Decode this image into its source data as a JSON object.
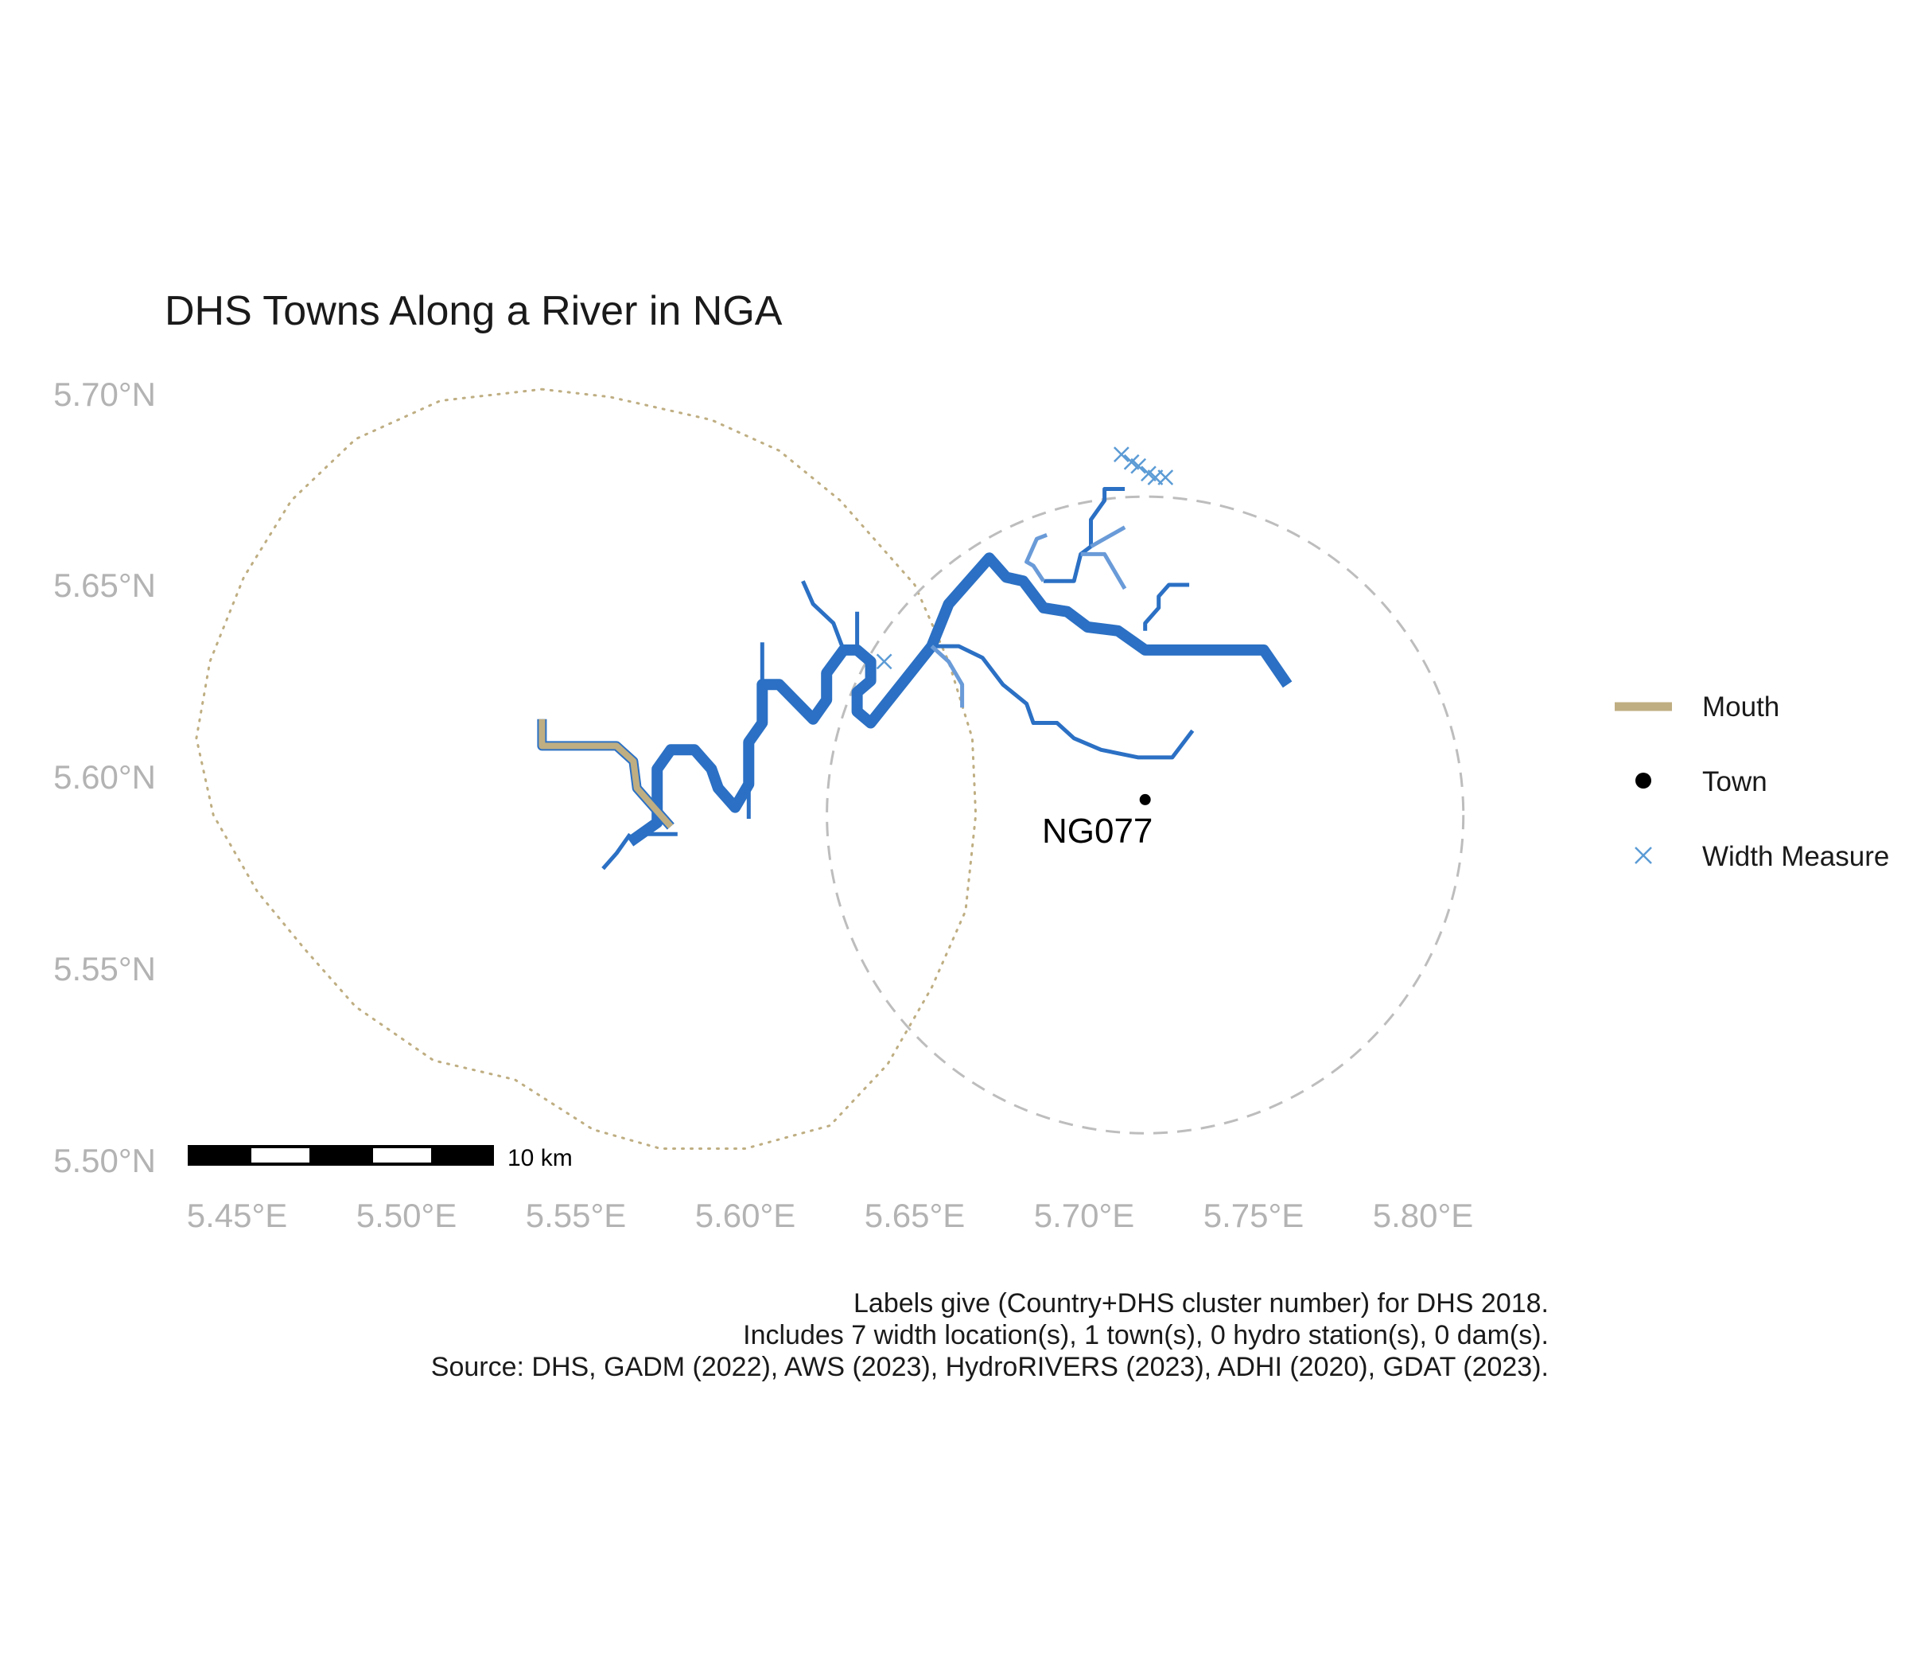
{
  "title": "DHS Towns Along a River in NGA",
  "axes": {
    "x_ticks": [
      "5.45°E",
      "5.50°E",
      "5.55°E",
      "5.60°E",
      "5.65°E",
      "5.70°E",
      "5.75°E",
      "5.80°E"
    ],
    "y_ticks": [
      "5.70°N",
      "5.65°N",
      "5.60°N",
      "5.55°N",
      "5.50°N"
    ]
  },
  "legend": {
    "items": [
      {
        "label": "Mouth",
        "kind": "line",
        "color": "#bfae82"
      },
      {
        "label": "Town",
        "kind": "point",
        "color": "#000000"
      },
      {
        "label": "Width Measure",
        "kind": "cross",
        "color": "#5b9bd5"
      }
    ]
  },
  "scale_bar": {
    "label": "10 km"
  },
  "town": {
    "label": "NG077",
    "lon": 5.718,
    "lat": 5.594
  },
  "caption": {
    "line1": "Labels give (Country+DHS cluster number) for DHS 2018.",
    "line2": "Includes 7 width location(s), 1 town(s), 0 hydro station(s), 0 dam(s).",
    "line3": "Source: DHS, GADM (2022), AWS (2023), HydroRIVERS (2023), ADHI (2020), GDAT (2023)."
  },
  "colors": {
    "river": "#2b70c4",
    "tributary": "#6a9bd8",
    "mouth": "#bfae82",
    "town_buffer": "#bdbdbd",
    "mouth_buffer": "#bfae82",
    "axis_text": "#b3b3b3"
  },
  "chart_data": {
    "type": "map",
    "xlim": [
      5.43,
      5.81
    ],
    "ylim": [
      5.5,
      5.705
    ],
    "grid": false,
    "legend_position": "right",
    "width_measures": [
      {
        "lon": 5.711,
        "lat": 5.684
      },
      {
        "lon": 5.714,
        "lat": 5.682
      },
      {
        "lon": 5.716,
        "lat": 5.681
      },
      {
        "lon": 5.719,
        "lat": 5.679
      },
      {
        "lon": 5.721,
        "lat": 5.678
      },
      {
        "lon": 5.724,
        "lat": 5.678
      },
      {
        "lon": 5.641,
        "lat": 5.63
      }
    ],
    "rivers": [
      {
        "role": "main",
        "width": 5,
        "coords": [
          [
            5.566,
            5.583
          ],
          [
            5.574,
            5.588
          ],
          [
            5.574,
            5.602
          ],
          [
            5.578,
            5.607
          ],
          [
            5.585,
            5.607
          ],
          [
            5.59,
            5.602
          ],
          [
            5.592,
            5.597
          ],
          [
            5.597,
            5.592
          ],
          [
            5.601,
            5.598
          ],
          [
            5.601,
            5.609
          ],
          [
            5.605,
            5.614
          ],
          [
            5.605,
            5.624
          ],
          [
            5.61,
            5.624
          ],
          [
            5.62,
            5.615
          ],
          [
            5.624,
            5.62
          ],
          [
            5.624,
            5.627
          ],
          [
            5.629,
            5.633
          ],
          [
            5.633,
            5.633
          ],
          [
            5.637,
            5.63
          ],
          [
            5.637,
            5.625
          ],
          [
            5.633,
            5.622
          ],
          [
            5.633,
            5.617
          ],
          [
            5.637,
            5.614
          ],
          [
            5.646,
            5.624
          ],
          [
            5.655,
            5.634
          ],
          [
            5.66,
            5.645
          ],
          [
            5.672,
            5.657
          ],
          [
            5.677,
            5.652
          ],
          [
            5.682,
            5.651
          ],
          [
            5.688,
            5.644
          ],
          [
            5.695,
            5.643
          ],
          [
            5.701,
            5.639
          ],
          [
            5.71,
            5.638
          ],
          [
            5.718,
            5.633
          ],
          [
            5.753,
            5.633
          ],
          [
            5.76,
            5.624
          ]
        ]
      },
      {
        "role": "main",
        "width": 3,
        "coords": [
          [
            5.566,
            5.585
          ],
          [
            5.562,
            5.58
          ],
          [
            5.558,
            5.576
          ]
        ]
      },
      {
        "role": "main",
        "width": 3,
        "coords": [
          [
            5.568,
            5.585
          ],
          [
            5.58,
            5.585
          ]
        ]
      },
      {
        "role": "branch",
        "width": 3,
        "coords": [
          [
            5.605,
            5.624
          ],
          [
            5.605,
            5.635
          ]
        ]
      },
      {
        "role": "branch",
        "width": 3,
        "coords": [
          [
            5.601,
            5.598
          ],
          [
            5.601,
            5.589
          ]
        ]
      },
      {
        "role": "branch",
        "width": 3,
        "coords": [
          [
            5.629,
            5.633
          ],
          [
            5.626,
            5.64
          ],
          [
            5.62,
            5.645
          ],
          [
            5.617,
            5.651
          ]
        ]
      },
      {
        "role": "branch",
        "width": 3,
        "coords": [
          [
            5.633,
            5.633
          ],
          [
            5.633,
            5.643
          ]
        ]
      },
      {
        "role": "branch",
        "width": 3,
        "coords": [
          [
            5.655,
            5.634
          ],
          [
            5.663,
            5.634
          ],
          [
            5.67,
            5.631
          ],
          [
            5.676,
            5.624
          ],
          [
            5.683,
            5.619
          ],
          [
            5.685,
            5.614
          ],
          [
            5.692,
            5.614
          ],
          [
            5.697,
            5.61
          ],
          [
            5.705,
            5.607
          ],
          [
            5.716,
            5.605
          ],
          [
            5.726,
            5.605
          ],
          [
            5.732,
            5.612
          ]
        ]
      },
      {
        "role": "tributary",
        "width": 3,
        "coords": [
          [
            5.655,
            5.634
          ],
          [
            5.66,
            5.63
          ],
          [
            5.664,
            5.624
          ],
          [
            5.664,
            5.618
          ]
        ]
      },
      {
        "role": "branch",
        "width": 3,
        "coords": [
          [
            5.688,
            5.651
          ],
          [
            5.697,
            5.651
          ],
          [
            5.699,
            5.658
          ],
          [
            5.702,
            5.66
          ],
          [
            5.702,
            5.667
          ],
          [
            5.706,
            5.672
          ],
          [
            5.706,
            5.675
          ],
          [
            5.712,
            5.675
          ]
        ]
      },
      {
        "role": "tributary",
        "width": 3,
        "coords": [
          [
            5.699,
            5.658
          ],
          [
            5.706,
            5.658
          ],
          [
            5.712,
            5.649
          ]
        ]
      },
      {
        "role": "tributary",
        "width": 3,
        "coords": [
          [
            5.702,
            5.66
          ],
          [
            5.712,
            5.665
          ]
        ]
      },
      {
        "role": "tributary",
        "width": 3,
        "coords": [
          [
            5.688,
            5.651
          ],
          [
            5.685,
            5.655
          ],
          [
            5.683,
            5.656
          ],
          [
            5.686,
            5.662
          ],
          [
            5.689,
            5.663
          ]
        ]
      },
      {
        "role": "branch",
        "width": 3,
        "coords": [
          [
            5.718,
            5.638
          ],
          [
            5.718,
            5.64
          ],
          [
            5.722,
            5.644
          ],
          [
            5.722,
            5.647
          ],
          [
            5.725,
            5.65
          ],
          [
            5.731,
            5.65
          ]
        ]
      }
    ],
    "mouth_segment": [
      [
        5.54,
        5.615
      ],
      [
        5.54,
        5.608
      ],
      [
        5.562,
        5.608
      ],
      [
        5.567,
        5.604
      ],
      [
        5.568,
        5.597
      ],
      [
        5.578,
        5.587
      ]
    ],
    "town_buffer": {
      "center_lon": 5.718,
      "center_lat": 5.59,
      "radius_deg": 0.083
    },
    "mouth_buffer": [
      [
        5.54,
        5.701
      ],
      [
        5.56,
        5.699
      ],
      [
        5.59,
        5.693
      ],
      [
        5.61,
        5.685
      ],
      [
        5.628,
        5.672
      ],
      [
        5.65,
        5.65
      ],
      [
        5.66,
        5.63
      ],
      [
        5.667,
        5.61
      ],
      [
        5.668,
        5.59
      ],
      [
        5.665,
        5.565
      ],
      [
        5.655,
        5.545
      ],
      [
        5.642,
        5.525
      ],
      [
        5.625,
        5.509
      ],
      [
        5.6,
        5.503
      ],
      [
        5.575,
        5.503
      ],
      [
        5.555,
        5.508
      ],
      [
        5.532,
        5.521
      ],
      [
        5.508,
        5.526
      ],
      [
        5.485,
        5.54
      ],
      [
        5.47,
        5.555
      ],
      [
        5.456,
        5.57
      ],
      [
        5.443,
        5.59
      ],
      [
        5.438,
        5.61
      ],
      [
        5.442,
        5.63
      ],
      [
        5.452,
        5.652
      ],
      [
        5.466,
        5.672
      ],
      [
        5.485,
        5.688
      ],
      [
        5.51,
        5.698
      ],
      [
        5.54,
        5.701
      ]
    ]
  }
}
